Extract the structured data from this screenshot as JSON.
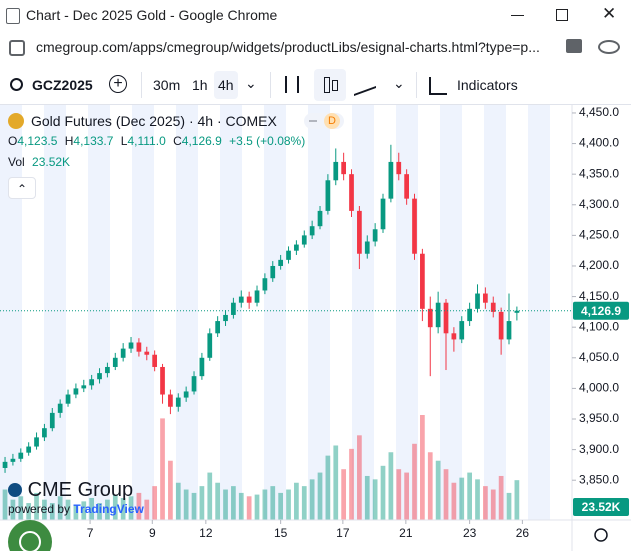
{
  "window": {
    "title": "Chart - Dec 2025 Gold - Google Chrome"
  },
  "address_bar": {
    "url": "cmegroup.com/apps/cmegroup/widgets/productLibs/esignal-charts.html?type=p..."
  },
  "toolbar": {
    "symbol": "GCZ2025",
    "intervals": [
      "30m",
      "1h",
      "4h"
    ],
    "indicators": "Indicators"
  },
  "chart_data": {
    "type": "candlestick",
    "title": "Gold Futures (Dec 2025) · 4h · COMEX",
    "badge": "D",
    "legend": {
      "open_key": "O",
      "open": "4,123.5",
      "high_key": "H",
      "high": "4,133.7",
      "low_key": "L",
      "low": "4,111.0",
      "close_key": "C",
      "close": "4,126.9",
      "change": "+3.5 (+0.08%)",
      "volume_key": "Vol",
      "volume": "23.52K"
    },
    "open": [
      3870,
      3880,
      3885,
      3895,
      3905,
      3920,
      3935,
      3960,
      3975,
      3990,
      4000,
      4005,
      4015,
      4025,
      4035,
      4050,
      4065,
      4075,
      4060,
      4055,
      4035,
      3990,
      3970,
      3985,
      3995,
      4020,
      4050,
      4090,
      4110,
      4120,
      4140,
      4150,
      4140,
      4160,
      4180,
      4200,
      4210,
      4225,
      4235,
      4250,
      4265,
      4290,
      4340,
      4370,
      4350,
      4290,
      4220,
      4240,
      4260,
      4310,
      4370,
      4350,
      4310,
      4220,
      4130,
      4100,
      4140,
      4090,
      4080,
      4110,
      4130,
      4155,
      4140,
      4125,
      4080,
      4123.5
    ],
    "high": [
      3888,
      3893,
      3902,
      3912,
      3928,
      3942,
      3968,
      3982,
      3998,
      4008,
      4014,
      4022,
      4033,
      4042,
      4058,
      4074,
      4084,
      4082,
      4068,
      4062,
      4040,
      3998,
      3992,
      4003,
      4028,
      4058,
      4098,
      4118,
      4128,
      4148,
      4160,
      4158,
      4168,
      4188,
      4208,
      4218,
      4232,
      4242,
      4258,
      4274,
      4298,
      4350,
      4392,
      4385,
      4358,
      4298,
      4250,
      4270,
      4318,
      4398,
      4385,
      4358,
      4318,
      4228,
      4150,
      4158,
      4146,
      4100,
      4118,
      4140,
      4170,
      4165,
      4150,
      4132,
      4155,
      4133.7
    ],
    "low": [
      3862,
      3874,
      3880,
      3890,
      3900,
      3914,
      3930,
      3952,
      3970,
      3984,
      3994,
      3998,
      4008,
      4018,
      4030,
      4044,
      4058,
      4052,
      4046,
      4028,
      3975,
      3958,
      3962,
      3978,
      3990,
      4014,
      4045,
      4084,
      4102,
      4114,
      4132,
      4130,
      4134,
      4154,
      4174,
      4194,
      4204,
      4218,
      4230,
      4244,
      4260,
      4284,
      4332,
      4340,
      4280,
      4195,
      4212,
      4232,
      4254,
      4304,
      4340,
      4300,
      4210,
      4110,
      4020,
      4090,
      4030,
      4060,
      4074,
      4102,
      4124,
      4130,
      4116,
      4055,
      4072,
      4111.0
    ],
    "close": [
      3880,
      3885,
      3895,
      3905,
      3920,
      3935,
      3960,
      3975,
      3990,
      4000,
      4005,
      4015,
      4025,
      4035,
      4050,
      4065,
      4075,
      4060,
      4055,
      4035,
      3990,
      3970,
      3985,
      3995,
      4020,
      4050,
      4090,
      4110,
      4120,
      4140,
      4150,
      4140,
      4160,
      4180,
      4200,
      4210,
      4225,
      4235,
      4250,
      4265,
      4290,
      4340,
      4370,
      4350,
      4290,
      4220,
      4240,
      4260,
      4310,
      4370,
      4350,
      4310,
      4220,
      4130,
      4100,
      4140,
      4090,
      4080,
      4110,
      4130,
      4155,
      4140,
      4125,
      4080,
      4110,
      4126.9
    ],
    "volume": [
      18,
      12,
      14,
      10,
      16,
      12,
      10,
      14,
      12,
      9,
      11,
      13,
      10,
      12,
      15,
      13,
      14,
      16,
      12,
      20,
      60,
      35,
      22,
      18,
      16,
      20,
      28,
      22,
      18,
      20,
      16,
      14,
      15,
      18,
      20,
      16,
      18,
      22,
      20,
      24,
      28,
      38,
      44,
      30,
      42,
      50,
      26,
      24,
      32,
      40,
      30,
      28,
      45,
      62,
      40,
      35,
      30,
      22,
      25,
      28,
      24,
      20,
      18,
      26,
      16,
      23.52
    ],
    "up_color": "#089981",
    "down_color": "#f23645",
    "xlim": [
      -0.64,
      72
    ],
    "xticks": [
      {
        "value": 10.8,
        "label": "7"
      },
      {
        "value": 18.7,
        "label": "9"
      },
      {
        "value": 25.5,
        "label": "12"
      },
      {
        "value": 35.0,
        "label": "15"
      },
      {
        "value": 42.9,
        "label": "17"
      },
      {
        "value": 50.9,
        "label": "21"
      },
      {
        "value": 59.0,
        "label": "23"
      },
      {
        "value": 65.7,
        "label": "26"
      }
    ],
    "ylim": [
      3785,
      4463
    ],
    "yticks": [
      {
        "value": 3850,
        "label": "3,850.0"
      },
      {
        "value": 3900,
        "label": "3,900.0"
      },
      {
        "value": 3950,
        "label": "3,950.0"
      },
      {
        "value": 4000,
        "label": "4,000.0"
      },
      {
        "value": 4050,
        "label": "4,050.0"
      },
      {
        "value": 4100,
        "label": "4,100.0"
      },
      {
        "value": 4150,
        "label": "4,150.0"
      },
      {
        "value": 4200,
        "label": "4,200.0"
      },
      {
        "value": 4250,
        "label": "4,250.0"
      },
      {
        "value": 4300,
        "label": "4,300.0"
      },
      {
        "value": 4350,
        "label": "4,350.0"
      },
      {
        "value": 4400,
        "label": "4,400.0"
      },
      {
        "value": 4450,
        "label": "4,450.0"
      }
    ]
  },
  "watermark": {
    "brand": "CME Group",
    "powered_by": "powered by",
    "provider": "TradingView"
  }
}
